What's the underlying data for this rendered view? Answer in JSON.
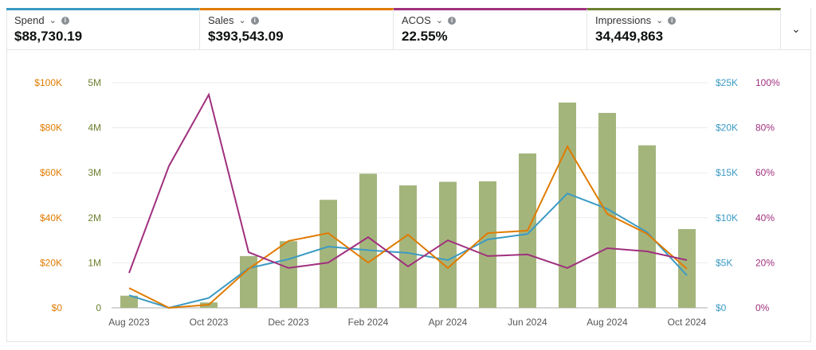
{
  "metrics": [
    {
      "label": "Spend",
      "value": "$88,730.19",
      "color": "#3a9ac4"
    },
    {
      "label": "Sales",
      "value": "$393,543.09",
      "color": "#e07b00"
    },
    {
      "label": "ACOS",
      "value": "22.55%",
      "color": "#a0307e"
    },
    {
      "label": "Impressions",
      "value": "34,449,863",
      "color": "#6b7f2e"
    }
  ],
  "icons": {
    "dropdown": "chevron-down-icon",
    "info": "info-icon",
    "expand": "chevron-down-icon"
  },
  "chart_data": {
    "type": "bar+line",
    "categories": [
      "Aug 2023",
      "Sep 2023",
      "Oct 2023",
      "Nov 2023",
      "Dec 2023",
      "Jan 2024",
      "Feb 2024",
      "Mar 2024",
      "Apr 2024",
      "May 2024",
      "Jun 2024",
      "Jul 2024",
      "Aug 2024",
      "Sep 2024",
      "Oct 2024"
    ],
    "x_tick_labels": [
      "Aug 2023",
      "Oct 2023",
      "Dec 2023",
      "Feb 2024",
      "Apr 2024",
      "Jun 2024",
      "Aug 2024",
      "Oct 2024"
    ],
    "grid": true,
    "axes": {
      "sales": {
        "ticks": [
          "$0",
          "$20K",
          "$40K",
          "$60K",
          "$80K",
          "$100K"
        ],
        "range": [
          0,
          100000
        ],
        "color": "#e07b00"
      },
      "impressions": {
        "ticks": [
          "0",
          "1M",
          "2M",
          "3M",
          "4M",
          "5M"
        ],
        "range": [
          0,
          5000000
        ],
        "color": "#6b7f2e"
      },
      "spend": {
        "ticks": [
          "$0",
          "$5K",
          "$10K",
          "$15K",
          "$20K",
          "$25K"
        ],
        "range": [
          0,
          25000
        ],
        "color": "#3a9ac4"
      },
      "acos": {
        "ticks": [
          "0%",
          "20%",
          "40%",
          "60%",
          "80%",
          "100%"
        ],
        "range": [
          0,
          100
        ],
        "color": "#a0307e"
      }
    },
    "series": [
      {
        "name": "Impressions",
        "type": "bar",
        "axis": "impressions",
        "color": "#a4b57c",
        "values": [
          270000,
          0,
          120000,
          1150000,
          1480000,
          2400000,
          2980000,
          2720000,
          2800000,
          2810000,
          3430000,
          4560000,
          4330000,
          3610000,
          1750000
        ]
      },
      {
        "name": "Spend",
        "type": "line",
        "axis": "spend",
        "color": "#3a9ac4",
        "values": [
          1400,
          0,
          1100,
          4400,
          5400,
          6800,
          6400,
          6100,
          5300,
          7600,
          8200,
          12700,
          11000,
          8400,
          3600
        ]
      },
      {
        "name": "Sales",
        "type": "line",
        "axis": "sales",
        "color": "#e07b00",
        "values": [
          8800,
          0,
          1400,
          17300,
          29700,
          33200,
          20100,
          32500,
          17700,
          33200,
          34300,
          71700,
          41700,
          32900,
          17300
        ]
      },
      {
        "name": "ACOS",
        "type": "line",
        "axis": "acos",
        "color": "#a0307e",
        "values": [
          15.5,
          63,
          94.7,
          24.7,
          17.7,
          20.1,
          31.4,
          18.4,
          30,
          23,
          23.7,
          17.7,
          26.5,
          25.1,
          21.2
        ]
      }
    ]
  }
}
